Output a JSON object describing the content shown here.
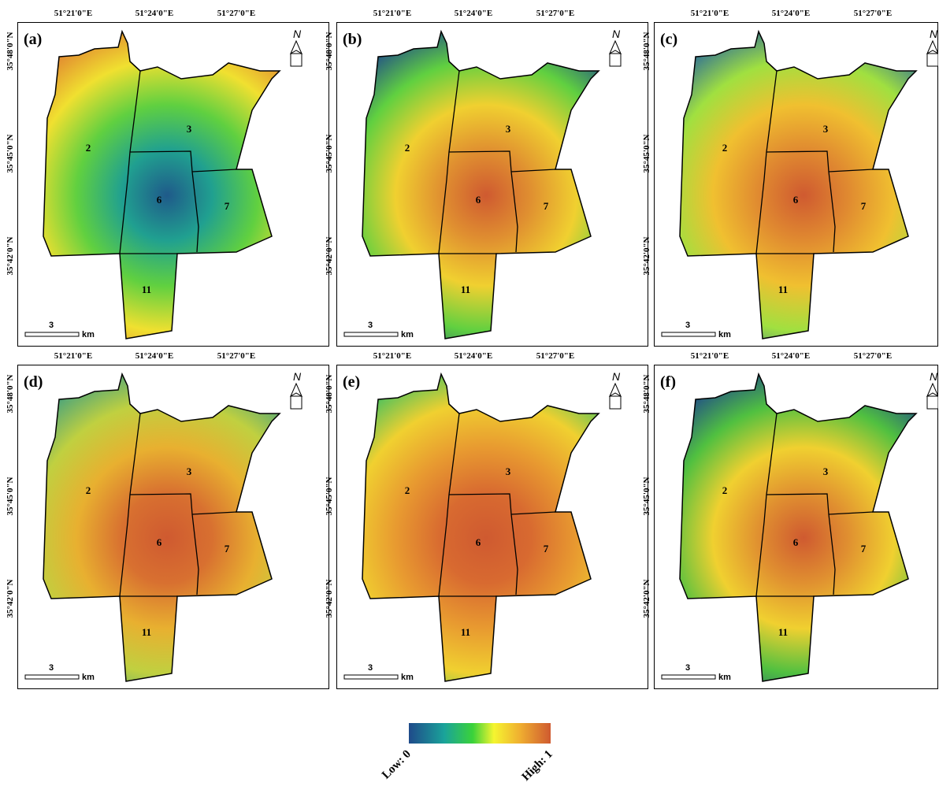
{
  "panels": [
    {
      "label": "(a)",
      "lon_labels": [
        "51°21'0\"E",
        "51°24'0\"E",
        "51°27'0\"E"
      ],
      "lat_labels": [
        "35°48'0\"N",
        "35°45'0\"N",
        "35°42'0\"N"
      ],
      "districts": [
        "2",
        "3",
        "6",
        "7",
        "11"
      ],
      "scale": "3",
      "scale_unit": "km",
      "north": "N"
    },
    {
      "label": "(b)",
      "lon_labels": [
        "51°21'0\"E",
        "51°24'0\"E",
        "51°27'0\"E"
      ],
      "lat_labels": [
        "35°48'0\"N",
        "35°45'0\"N",
        "35°42'0\"N"
      ],
      "districts": [
        "2",
        "3",
        "6",
        "7",
        "11"
      ],
      "scale": "3",
      "scale_unit": "km",
      "north": "N"
    },
    {
      "label": "(c)",
      "lon_labels": [
        "51°21'0\"E",
        "51°24'0\"E",
        "51°27'0\"E"
      ],
      "lat_labels": [
        "35°48'0\"N",
        "35°45'0\"N",
        "35°42'0\"N"
      ],
      "districts": [
        "2",
        "3",
        "6",
        "7",
        "11"
      ],
      "scale": "3",
      "scale_unit": "km",
      "north": "N"
    },
    {
      "label": "(d)",
      "lon_labels": [
        "51°21'0\"E",
        "51°24'0\"E",
        "51°27'0\"E"
      ],
      "lat_labels": [
        "35°48'0\"N",
        "35°45'0\"N",
        "35°42'0\"N"
      ],
      "districts": [
        "2",
        "3",
        "6",
        "7",
        "11"
      ],
      "scale": "3",
      "scale_unit": "km",
      "north": "N"
    },
    {
      "label": "(e)",
      "lon_labels": [
        "51°21'0\"E",
        "51°24'0\"E",
        "51°27'0\"E"
      ],
      "lat_labels": [
        "35°48'0\"N",
        "35°45'0\"N",
        "35°42'0\"N"
      ],
      "districts": [
        "2",
        "3",
        "6",
        "7",
        "11"
      ],
      "scale": "3",
      "scale_unit": "km",
      "north": "N"
    },
    {
      "label": "(f)",
      "lon_labels": [
        "51°21'0\"E",
        "51°24'0\"E",
        "51°27'0\"E"
      ],
      "lat_labels": [
        "35°48'0\"N",
        "35°45'0\"N",
        "35°42'0\"N"
      ],
      "districts": [
        "2",
        "3",
        "6",
        "7",
        "11"
      ],
      "scale": "3",
      "scale_unit": "km",
      "north": "N"
    }
  ],
  "legend": {
    "low": "Low: 0",
    "high": "High: 1"
  }
}
